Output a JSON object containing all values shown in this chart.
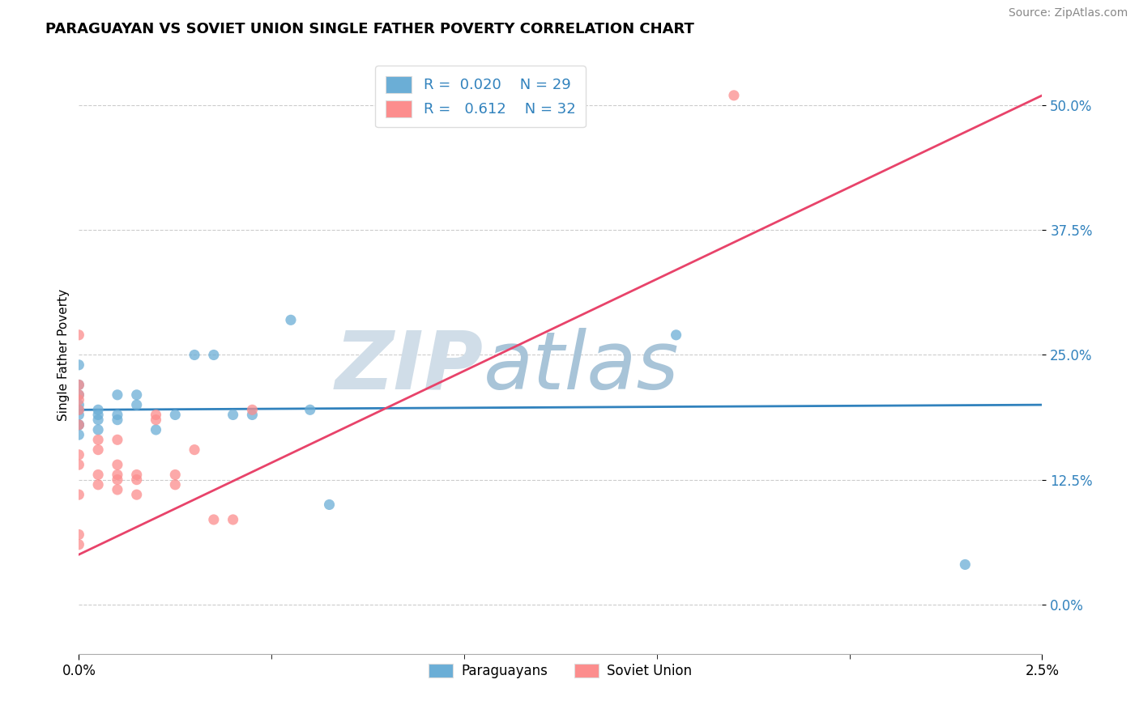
{
  "title": "PARAGUAYAN VS SOVIET UNION SINGLE FATHER POVERTY CORRELATION CHART",
  "source": "Source: ZipAtlas.com",
  "ylabel": "Single Father Poverty",
  "paraguayan_R": 0.02,
  "paraguayan_N": 29,
  "soviet_R": 0.612,
  "soviet_N": 32,
  "blue_color": "#6baed6",
  "pink_color": "#fc8d8d",
  "blue_line_color": "#3182bd",
  "pink_line_color": "#e8436a",
  "watermark_zip": "ZIP",
  "watermark_atlas": "atlas",
  "watermark_color_zip": "#d0dde8",
  "watermark_color_atlas": "#a8c4d8",
  "legend_R_color": "#3182bd",
  "paraguayan_x": [
    0.0,
    0.0,
    0.0,
    0.0,
    0.0,
    0.0,
    0.0,
    0.0,
    0.0,
    0.05,
    0.05,
    0.05,
    0.05,
    0.1,
    0.1,
    0.1,
    0.15,
    0.15,
    0.2,
    0.25,
    0.3,
    0.35,
    0.4,
    0.45,
    0.55,
    0.6,
    0.65,
    1.55,
    2.3
  ],
  "paraguayan_y": [
    18.0,
    19.0,
    19.5,
    20.0,
    21.0,
    22.0,
    24.0,
    18.0,
    17.0,
    18.5,
    19.0,
    19.5,
    17.5,
    18.5,
    19.0,
    21.0,
    20.0,
    21.0,
    17.5,
    19.0,
    25.0,
    25.0,
    19.0,
    19.0,
    28.5,
    19.5,
    10.0,
    27.0,
    4.0
  ],
  "soviet_x": [
    0.0,
    0.0,
    0.0,
    0.0,
    0.0,
    0.0,
    0.0,
    0.0,
    0.0,
    0.0,
    0.0,
    0.05,
    0.05,
    0.05,
    0.05,
    0.1,
    0.1,
    0.1,
    0.1,
    0.1,
    0.15,
    0.15,
    0.15,
    0.2,
    0.2,
    0.25,
    0.25,
    0.3,
    0.35,
    0.4,
    0.45,
    1.7
  ],
  "soviet_y": [
    18.0,
    19.5,
    20.5,
    21.0,
    22.0,
    27.0,
    11.0,
    7.0,
    6.0,
    15.0,
    14.0,
    16.5,
    15.5,
    13.0,
    12.0,
    14.0,
    13.0,
    16.5,
    12.5,
    11.5,
    13.0,
    12.5,
    11.0,
    19.0,
    18.5,
    13.0,
    12.0,
    15.5,
    8.5,
    8.5,
    19.5,
    51.0
  ],
  "xlim": [
    0.0,
    2.5
  ],
  "ylim": [
    -5.0,
    55.0
  ],
  "blue_trend_x": [
    0.0,
    2.5
  ],
  "blue_trend_y": [
    19.5,
    20.0
  ],
  "pink_trend_x": [
    0.0,
    2.5
  ],
  "pink_trend_y": [
    5.0,
    51.0
  ],
  "ytick_vals": [
    0.0,
    12.5,
    25.0,
    37.5,
    50.0
  ],
  "ytick_labels": [
    "0.0%",
    "12.5%",
    "25.0%",
    "37.5%",
    "50.0%"
  ]
}
